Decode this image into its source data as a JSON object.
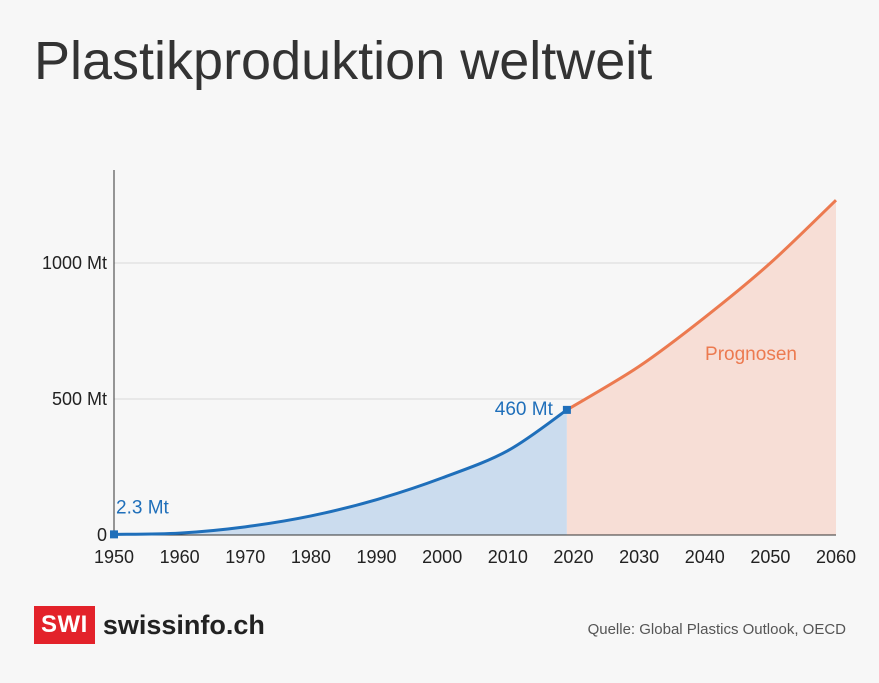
{
  "title": "Plastikproduktion weltweit",
  "source": "Quelle: Global Plastics Outlook, OECD",
  "logo": {
    "badge": "SWI",
    "name": "swissinfo.ch"
  },
  "colors": {
    "historical": "#1f6fba",
    "historical_fill": "#cbdcee",
    "forecast": "#ec7a50",
    "forecast_fill": "#f7ded6",
    "logo_red": "#e3222a"
  },
  "chart_data": {
    "type": "area",
    "xlim": [
      1950,
      2060
    ],
    "ylim": [
      0,
      1250
    ],
    "x_ticks": [
      1950,
      1960,
      1970,
      1980,
      1990,
      2000,
      2010,
      2020,
      2030,
      2040,
      2050,
      2060
    ],
    "y_ticks": [
      {
        "value": 0,
        "label": "0"
      },
      {
        "value": 500,
        "label": "500 Mt"
      },
      {
        "value": 1000,
        "label": "1000 Mt"
      }
    ],
    "grid": true,
    "series": [
      {
        "x": [
          1950,
          1960,
          1970,
          1980,
          1990,
          2000,
          2010,
          2019
        ],
        "values": [
          2.3,
          7,
          30,
          70,
          130,
          210,
          310,
          460
        ]
      },
      {
        "name": "Prognosen",
        "x": [
          2019,
          2030,
          2040,
          2050,
          2060
        ],
        "values": [
          460,
          620,
          800,
          1000,
          1231
        ]
      }
    ],
    "annotations": [
      {
        "text": "2.3 Mt",
        "x": 1950,
        "y": 2.3
      },
      {
        "text": "460 Mt",
        "x": 2019,
        "y": 460
      }
    ]
  }
}
